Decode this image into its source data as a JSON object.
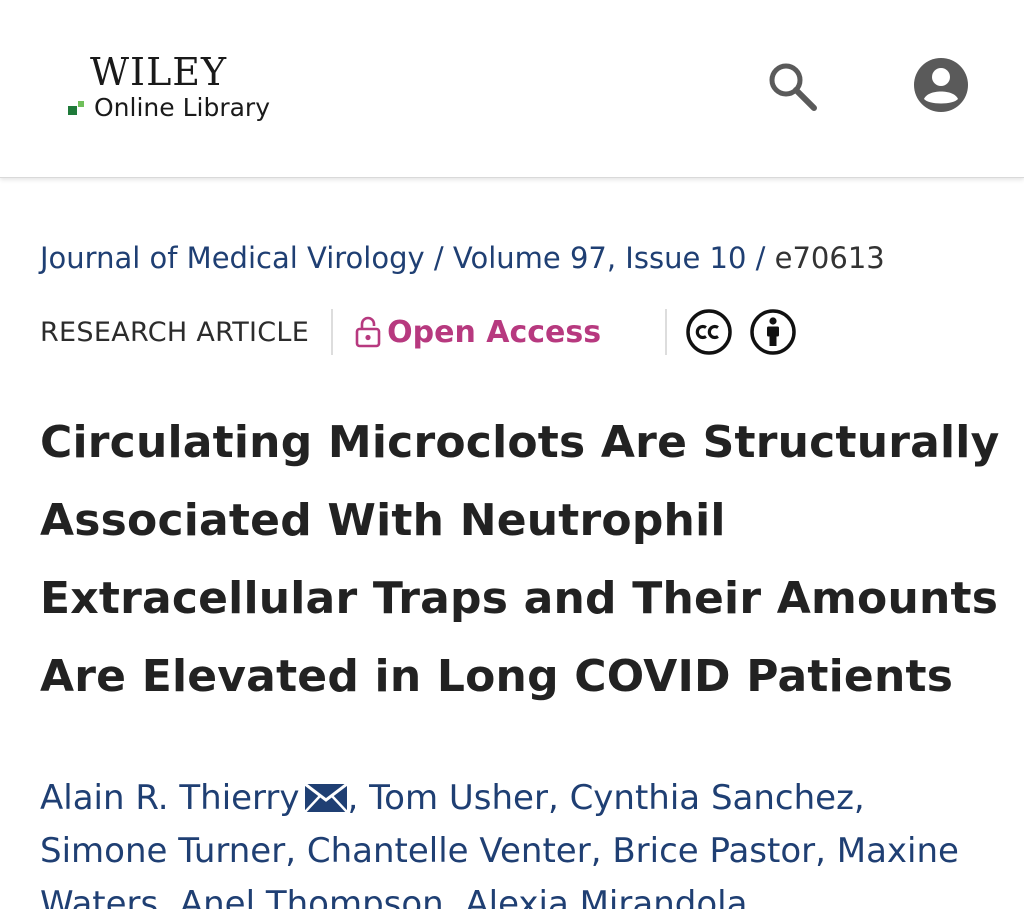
{
  "header": {
    "logo_top": "WILEY",
    "logo_bottom": "Online Library",
    "icons": {
      "search": "search-icon",
      "account": "account-circle-icon"
    }
  },
  "breadcrumb": {
    "journal": "Journal of Medical Virology",
    "separator": "/",
    "volume_issue": "Volume 97, Issue 10",
    "article_number": "e70613"
  },
  "meta": {
    "article_type": "RESEARCH ARTICLE",
    "open_access_label": "Open Access",
    "license_icons": [
      "creative-commons-icon",
      "attribution-icon"
    ]
  },
  "article": {
    "title": "Circulating Microclots Are Structurally Associated With Neutrophil Extracellular Traps and Their Amounts Are Elevated in Long COVID Patients"
  },
  "authors": [
    "Alain R. Thierry",
    "Tom Usher",
    "Cynthia Sanchez",
    "Simone Turner",
    "Chantelle Venter",
    "Brice Pastor",
    "Maxine Waters",
    "Anel Thompson",
    "Alexia Mirandola"
  ],
  "colors": {
    "link": "#1f3f73",
    "open_access": "#b7397f",
    "logo_green_dark": "#1f7a3a",
    "logo_green_light": "#6fbf5a",
    "icon_gray": "#5a5a5a"
  }
}
